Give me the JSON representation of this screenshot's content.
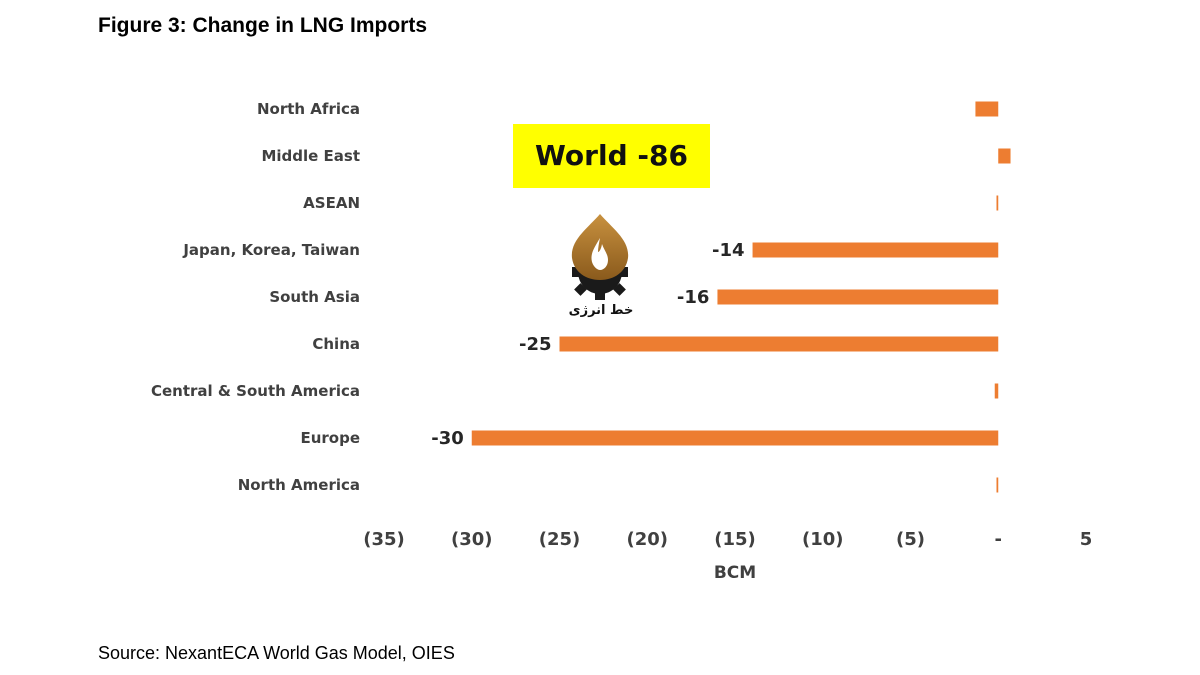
{
  "title": "Figure 3: Change in LNG Imports",
  "source": "Source: NexantECA World Gas Model, OIES",
  "annotation": {
    "text": "World -86",
    "background": "#ffff00"
  },
  "watermark": {
    "text": "خط انرژی"
  },
  "colors": {
    "bar": "#ed7d31",
    "text": "#404040"
  },
  "chart_data": {
    "type": "bar",
    "orientation": "horizontal",
    "categories": [
      "North Africa",
      "Middle East",
      "ASEAN",
      "Japan, Korea, Taiwan",
      "South Asia",
      "China",
      "Central & South America",
      "Europe",
      "North America"
    ],
    "values": [
      -1.3,
      0.7,
      -0.1,
      -14,
      -16,
      -25,
      -0.2,
      -30,
      -0.1
    ],
    "data_labels": [
      "",
      "",
      "",
      "-14",
      "-16",
      "-25",
      "",
      "-30",
      ""
    ],
    "xlabel": "BCM",
    "xlim": [
      -35,
      5
    ],
    "xticks": [
      -35,
      -30,
      -25,
      -20,
      -15,
      -10,
      -5,
      0,
      5
    ],
    "xtick_labels": [
      "(35)",
      "(30)",
      "(25)",
      "(20)",
      "(15)",
      "(10)",
      "(5)",
      "-",
      "5"
    ],
    "grid": false,
    "legend": "none"
  }
}
